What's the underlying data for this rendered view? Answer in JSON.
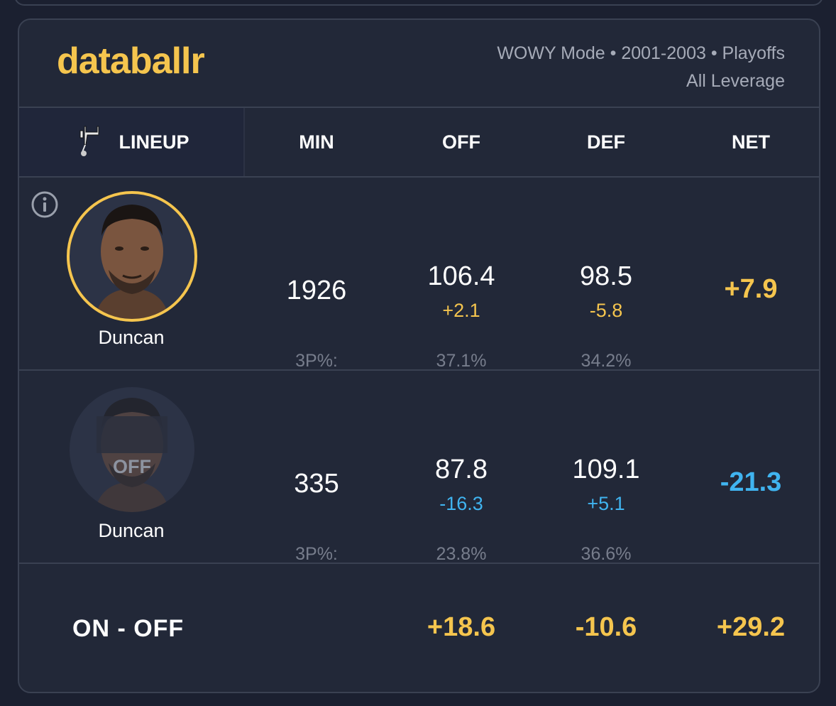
{
  "brand": {
    "logo_text": "databallr"
  },
  "filters": {
    "line1": "WOWY Mode • 2001-2003 • Playoffs",
    "line2": "All Leverage"
  },
  "columns": {
    "lineup": "LINEUP",
    "min": "MIN",
    "off": "OFF",
    "def": "DEF",
    "net": "NET"
  },
  "team_icon": "spurs-logo-icon",
  "rows": [
    {
      "status": "on",
      "player": "Duncan",
      "min": "1926",
      "off": "106.4",
      "off_diff": "+2.1",
      "def": "98.5",
      "def_diff": "-5.8",
      "net": "+7.9",
      "three_label": "3P%:",
      "off_three": "37.1%",
      "def_three": "34.2%"
    },
    {
      "status": "off",
      "off_badge": "OFF",
      "player": "Duncan",
      "min": "335",
      "off": "87.8",
      "off_diff": "-16.3",
      "def": "109.1",
      "def_diff": "+5.1",
      "net": "-21.3",
      "three_label": "3P%:",
      "off_three": "23.8%",
      "def_three": "36.6%"
    }
  ],
  "on_off": {
    "label": "ON - OFF",
    "off": "+18.6",
    "def": "-10.6",
    "net": "+29.2"
  },
  "colors": {
    "accent": "#f5c54e",
    "negative_blue": "#40b4f0",
    "card_bg": "#222838",
    "page_bg": "#1b2030"
  }
}
